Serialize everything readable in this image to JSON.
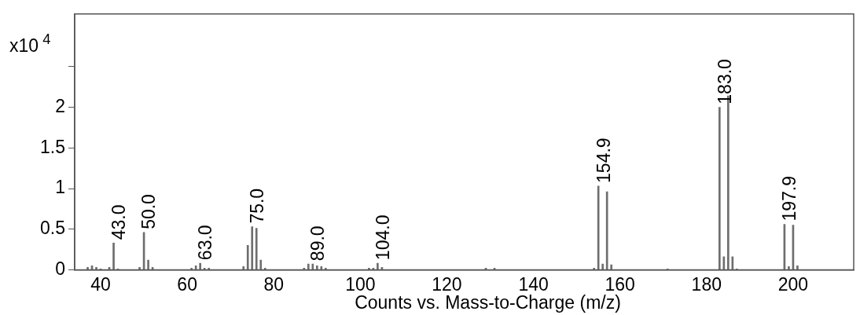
{
  "chart_data": {
    "type": "bar",
    "ylabel": "x10$^{4}$",
    "xlabel": "Counts vs. Mass-to-Charge (m/z)",
    "x": [
      37,
      38,
      39,
      40,
      42,
      43,
      44,
      49,
      50,
      51,
      52,
      61,
      62,
      63,
      64,
      65,
      73,
      74,
      75,
      76,
      77,
      78,
      87,
      88,
      89,
      90,
      91,
      92,
      102,
      103,
      104,
      105,
      129,
      131,
      154,
      155,
      156,
      157,
      158,
      171,
      183,
      184,
      185,
      186,
      187,
      198,
      199,
      200,
      201
    ],
    "values": [
      0.03,
      0.05,
      0.03,
      0.01,
      0.03,
      0.33,
      0.01,
      0.03,
      0.46,
      0.12,
      0.03,
      0.02,
      0.05,
      0.08,
      0.02,
      0.02,
      0.04,
      0.3,
      0.53,
      0.51,
      0.12,
      0.02,
      0.02,
      0.07,
      0.07,
      0.05,
      0.04,
      0.02,
      0.02,
      0.02,
      0.08,
      0.03,
      0.02,
      0.02,
      0.02,
      1.03,
      0.07,
      0.96,
      0.06,
      0.01,
      2.0,
      0.16,
      2.14,
      0.16,
      0.01,
      0.56,
      0.04,
      0.55,
      0.05
    ],
    "color": "#6e6e6e",
    "xlim": [
      34,
      214
    ],
    "xticks": [
      40,
      60,
      80,
      100,
      120,
      140,
      160,
      180,
      200
    ],
    "ylim": [
      0,
      3.15
    ],
    "yticks": [
      0,
      0.5,
      1,
      1.5,
      2,
      {
        "value": 2.5,
        "label": null
      }
    ],
    "grid": false,
    "legend": false,
    "annotations": [
      {
        "text": "43.0",
        "x": 43,
        "y": 0.33
      },
      {
        "text": "50.0",
        "x": 50,
        "y": 0.46
      },
      {
        "text": "63.0",
        "x": 63,
        "y": 0.08
      },
      {
        "text": "75.0",
        "x": 75,
        "y": 0.53
      },
      {
        "text": "89.0",
        "x": 89,
        "y": 0.07
      },
      {
        "text": "104.0",
        "x": 104,
        "y": 0.08
      },
      {
        "text": "154.9",
        "x": 155,
        "y": 1.03
      },
      {
        "text": "183.0",
        "x": 183,
        "y": 2.0
      },
      {
        "text": "197.9",
        "x": 198,
        "y": 0.56
      }
    ]
  }
}
